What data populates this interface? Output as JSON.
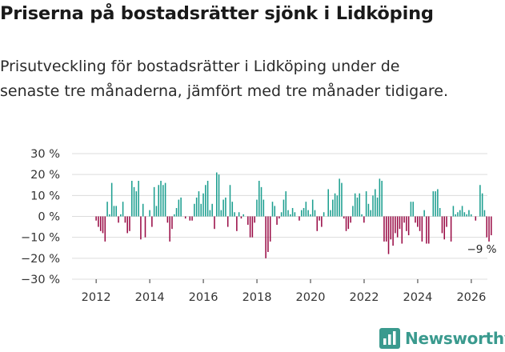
{
  "title": "Priserna på bostadsrätter sjönk i Lidköping",
  "subtitle": "Prisutveckling för bostadsrätter i Lidköping under de senaste tre månaderna, jämfört med tre månader tidigare.",
  "brand": {
    "name": "Newsworthy",
    "color": "#3a9a8e",
    "icon": "newsworthy-logo-icon"
  },
  "colors": {
    "positive": "#1b9e8f",
    "negative": "#990b45",
    "grid": "#dcdcdc"
  },
  "chart_data": {
    "type": "bar",
    "ylabel": "%",
    "ylim": [
      -30,
      30
    ],
    "yticks": [
      30,
      20,
      10,
      0,
      -10,
      -20,
      -30
    ],
    "ytick_labels": [
      "30 %",
      "20 %",
      "10 %",
      "0 %",
      "−10 %",
      "−20 %",
      "−30 %"
    ],
    "xlim": [
      2011.1,
      2026.6
    ],
    "xticks": [
      2012,
      2014,
      2016,
      2018,
      2020,
      2022,
      2024,
      2026
    ],
    "xtick_labels": [
      "2012",
      "2014",
      "2016",
      "2018",
      "2020",
      "2022",
      "2024",
      "2026"
    ],
    "start": 2012.0,
    "step": 0.0833,
    "values": [
      -2,
      -5,
      -7,
      -8,
      -12,
      7,
      1,
      16,
      5,
      5,
      -3,
      1,
      7,
      -3,
      -8,
      -7,
      17,
      14,
      12,
      17,
      -11,
      6,
      -10,
      0,
      3,
      -5,
      14,
      5,
      15,
      17,
      15,
      16,
      -3,
      -12,
      -6,
      1,
      4,
      8,
      9,
      0,
      -1,
      0,
      -2,
      -2,
      6,
      9,
      12,
      6,
      11,
      15,
      17,
      3,
      6,
      -6,
      21,
      20,
      3,
      8,
      9,
      -5,
      15,
      7,
      2,
      -7,
      2,
      -1,
      1,
      0,
      -4,
      -10,
      -10,
      -3,
      8,
      17,
      14,
      8,
      -20,
      -17,
      -12,
      7,
      5,
      -4,
      -1,
      2,
      8,
      12,
      3,
      1,
      4,
      2,
      0,
      -2,
      3,
      4,
      7,
      3,
      1,
      8,
      3,
      -7,
      -2,
      -5,
      2,
      0,
      13,
      3,
      8,
      11,
      10,
      18,
      16,
      -1,
      -7,
      -6,
      -3,
      5,
      11,
      9,
      11,
      1,
      -3,
      12,
      6,
      3,
      10,
      13,
      9,
      18,
      17,
      -12,
      -12,
      -18,
      -11,
      -14,
      -8,
      -10,
      -6,
      -13,
      -3,
      -7,
      -9,
      7,
      7,
      -3,
      -5,
      -7,
      -12,
      3,
      -13,
      -13,
      0,
      12,
      12,
      13,
      4,
      -8,
      -11,
      -5,
      0,
      -12,
      5,
      1,
      2,
      3,
      5,
      2,
      1,
      3,
      1,
      0,
      -2,
      0,
      15,
      11,
      3,
      -10,
      -12,
      -9
    ],
    "annotations": [
      {
        "text": "−9 %",
        "x": 2026.33,
        "y": -9
      }
    ]
  }
}
